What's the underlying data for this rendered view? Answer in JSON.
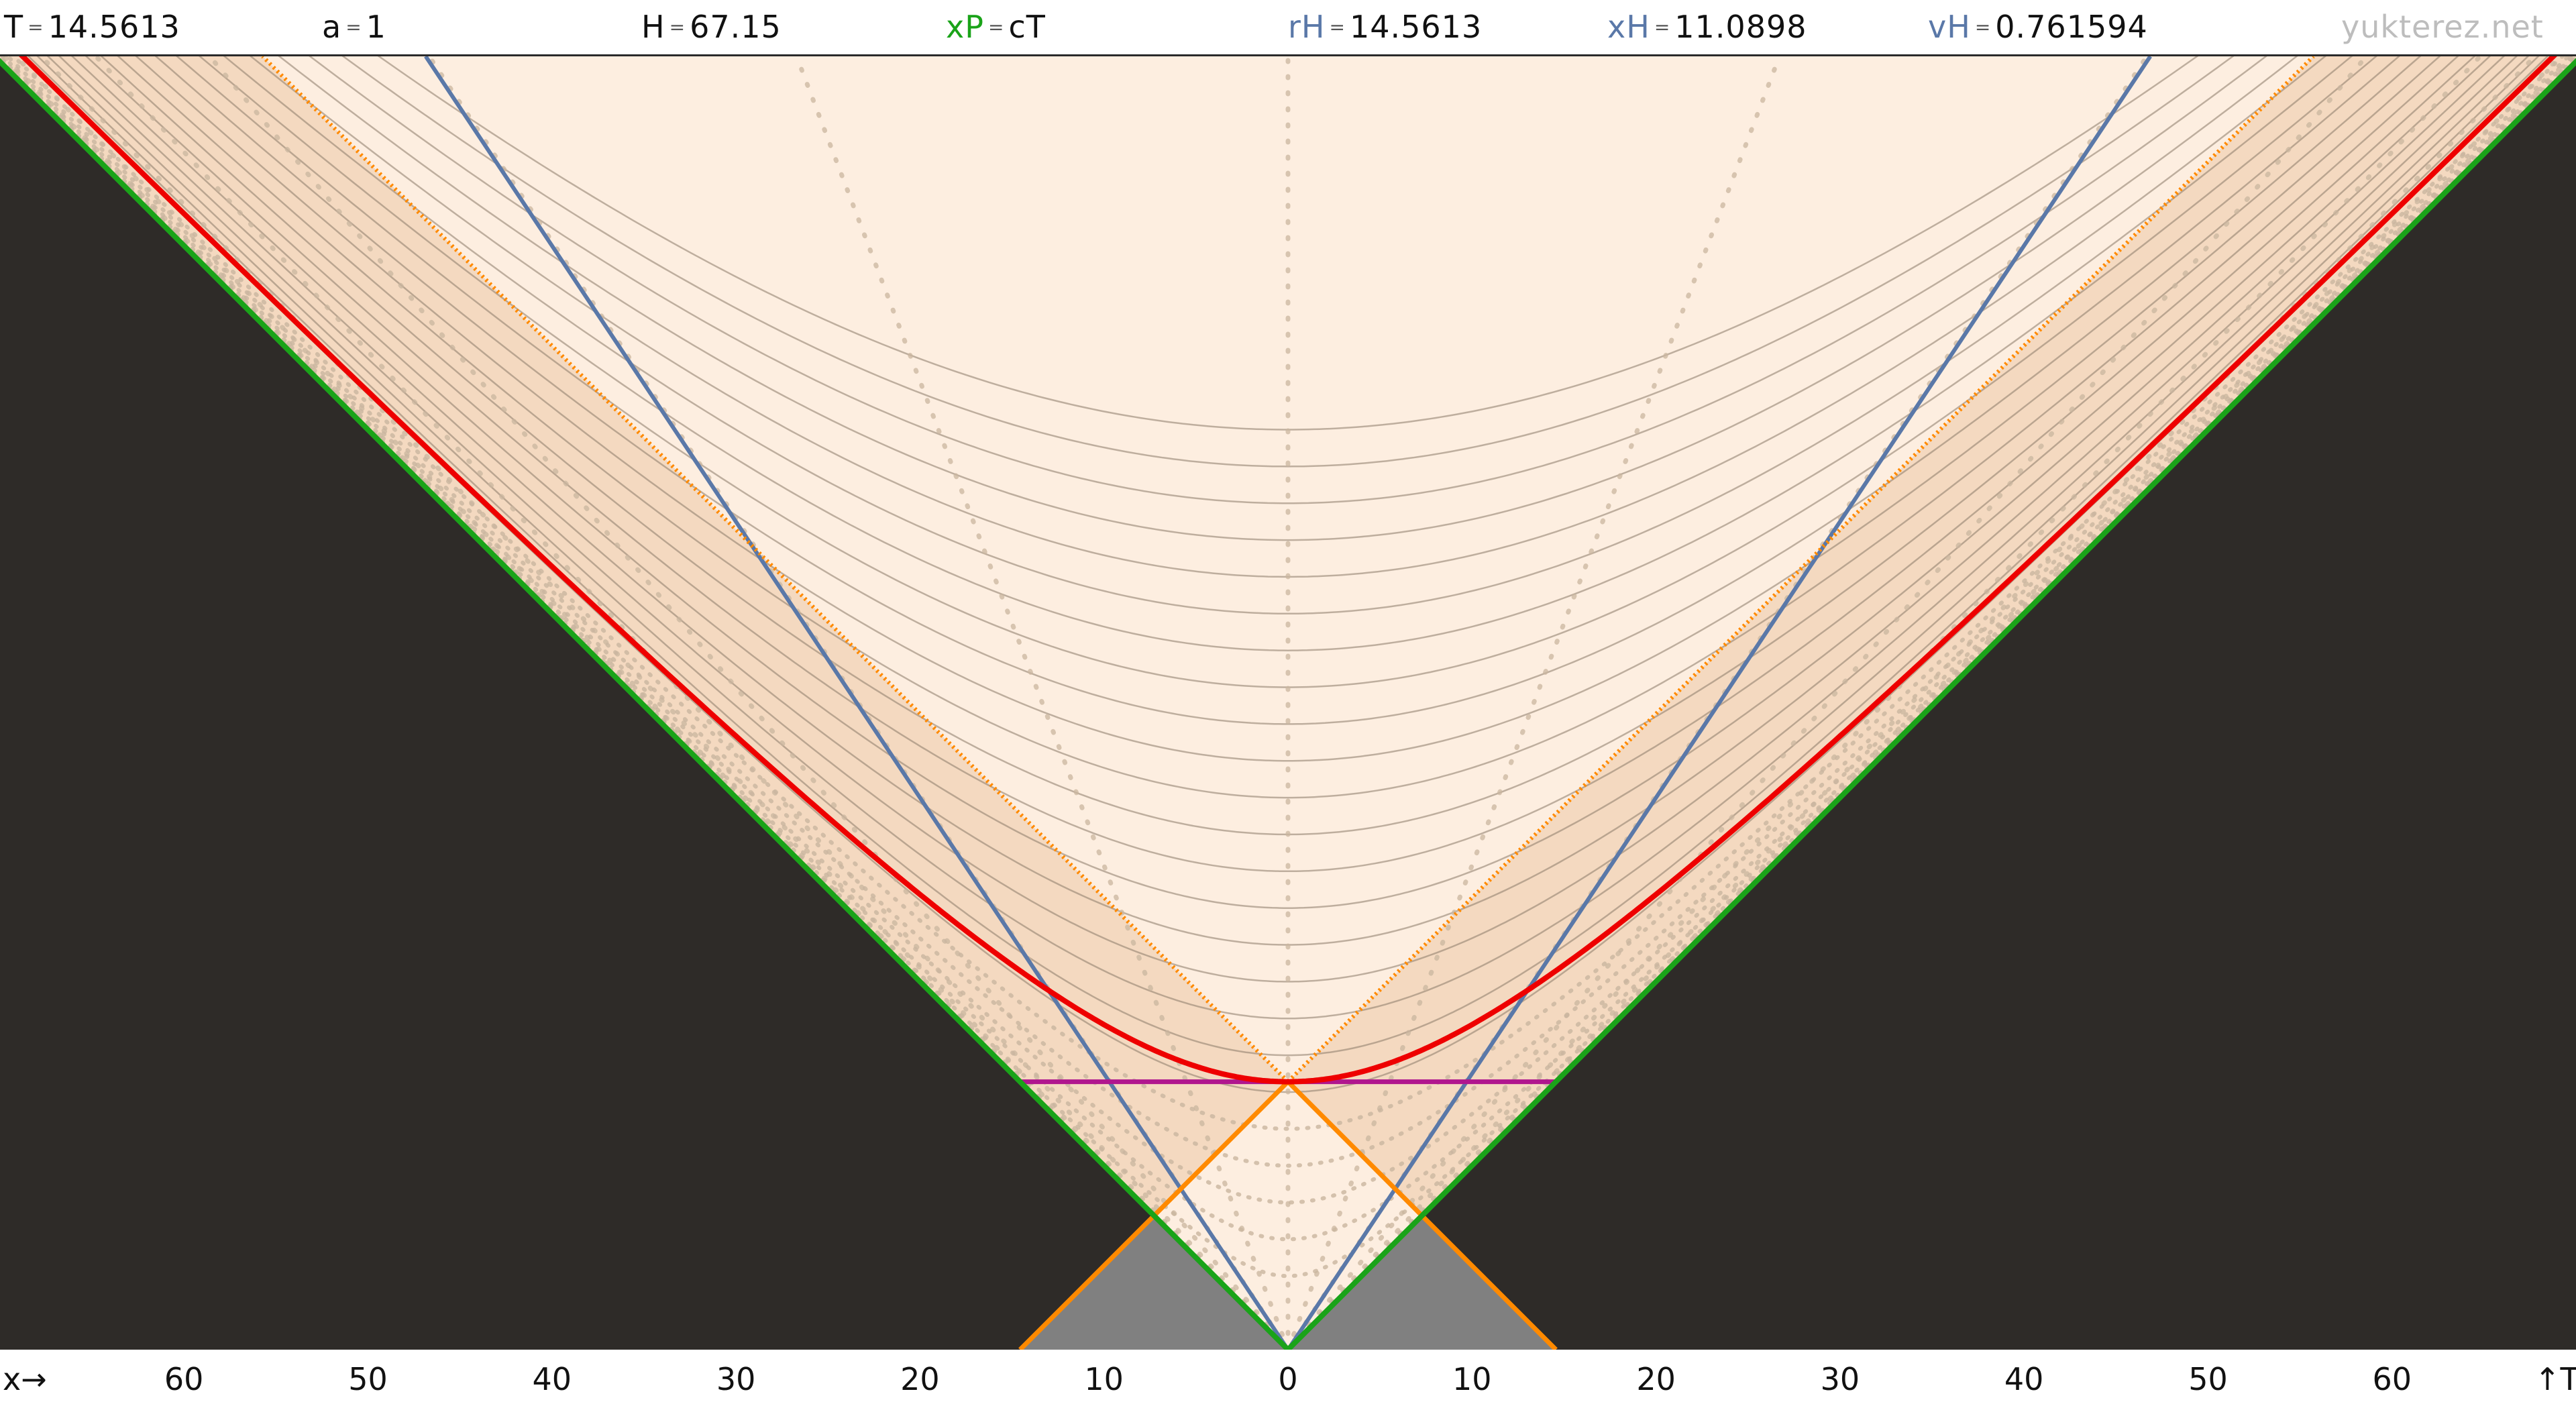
{
  "header": {
    "T": {
      "name": "T",
      "eq": "=",
      "value": "14.5613"
    },
    "a": {
      "name": "a",
      "eq": "=",
      "value": "1"
    },
    "H": {
      "name": "H",
      "eq": "=",
      "value": "67.15"
    },
    "xP": {
      "name": "xP",
      "eq": "=",
      "value": "cT"
    },
    "rH": {
      "name": "rH",
      "eq": "=",
      "value": "14.5613"
    },
    "xH": {
      "name": "xH",
      "eq": "=",
      "value": "11.0898"
    },
    "vH": {
      "name": "vH",
      "eq": "=",
      "value": "0.761594"
    },
    "site": "yukterez.net"
  },
  "axis": {
    "x_label": "x→",
    "t_label": "↑T",
    "ticks": [
      "60",
      "50",
      "40",
      "30",
      "20",
      "10",
      "0",
      "10",
      "20",
      "30",
      "40",
      "50",
      "60"
    ]
  },
  "diagram": {
    "T_now": 14.5613,
    "x_range": [
      -70,
      70
    ],
    "t_range": [
      0,
      70
    ],
    "grid_hyperbola_taus": [
      4,
      6,
      8,
      10,
      12,
      14,
      16,
      18,
      20,
      22,
      24,
      26,
      28,
      30,
      32,
      34,
      36,
      38,
      40,
      42,
      44,
      46,
      48,
      50
    ],
    "grid_rapidities": [
      -3.6,
      -3.2,
      -2.8,
      -2.4,
      -2.0,
      -1.6,
      -1.2,
      -0.8,
      -0.4,
      0.4,
      0.8,
      1.2,
      1.6,
      2.0,
      2.4,
      2.8,
      3.2,
      3.6
    ],
    "colors": {
      "background_fill": "#fdeee0",
      "outside_cone": "#2e2b28",
      "band_fill": "#ecc9a6",
      "past_light_cone": "#808080",
      "light_cone": "#1aa319",
      "hyperbola": "#ee0000",
      "blue_lines": "#5a78a8",
      "orange_lines": "#ff8a00",
      "simultaneity": "#b0168e",
      "grid_solid": "#8a7a68",
      "grid_dotted": "#c9b59f"
    }
  }
}
